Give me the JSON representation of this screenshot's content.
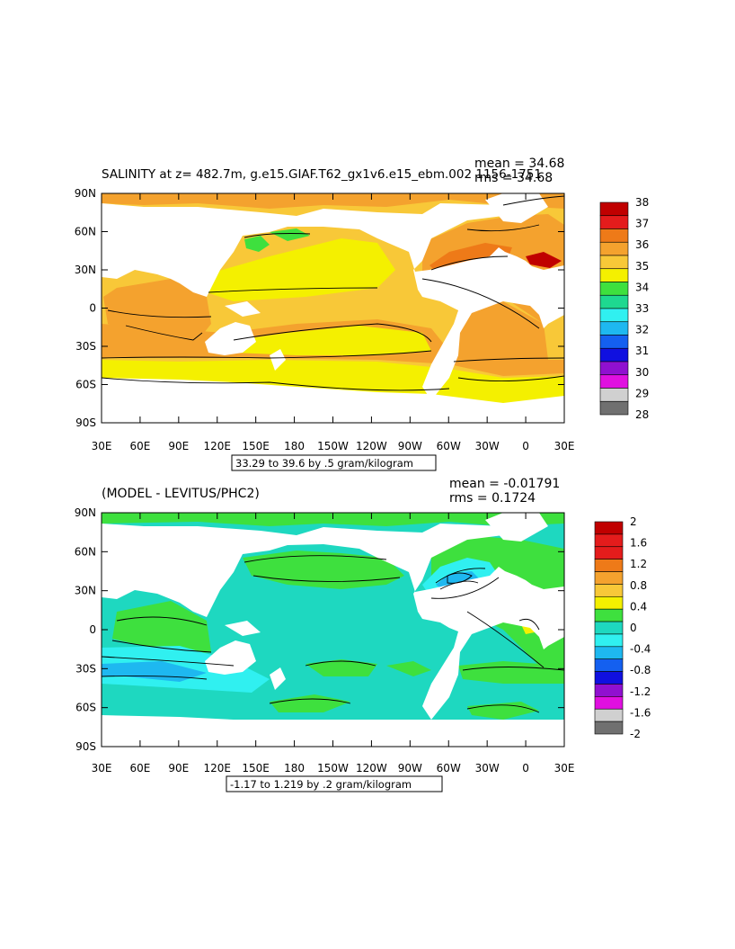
{
  "panels": [
    {
      "title": "SALINITY at z= 482.7m, g.e15.GIAF.T62_gx1v6.e15_ebm.002 1156-1751",
      "stats": [
        "mean = 34.68",
        "rms = 34.68"
      ],
      "range_label": "33.29 to 39.6 by .5 gram/kilogram",
      "colorbar": {
        "labels": [
          "38",
          "37",
          "36",
          "35",
          "34",
          "33",
          "32",
          "31",
          "30",
          "29",
          "28"
        ],
        "colors": [
          "#c00000",
          "#e41c1c",
          "#ee7a18",
          "#f4a22e",
          "#f8c838",
          "#f4f000",
          "#3ee03e",
          "#1ed890",
          "#30f0f0",
          "#1eb8f0",
          "#1460f0",
          "#1010e0",
          "#9010d0",
          "#e010e0",
          "#d0d0d0",
          "#707070"
        ]
      },
      "x_ticks": [
        "30E",
        "60E",
        "90E",
        "120E",
        "150E",
        "180",
        "150W",
        "120W",
        "90W",
        "60W",
        "30W",
        "0",
        "30E"
      ],
      "y_ticks": [
        "90N",
        "60N",
        "30N",
        "0",
        "30S",
        "60S",
        "90S"
      ],
      "ocean_color": "#f8c838",
      "band_colors": {
        "high": "#f4a22e",
        "mid": "#f8c838",
        "low": "#f4f000",
        "max": "#ee7a18",
        "hot": "#c00000",
        "green": "#3ee03e"
      }
    },
    {
      "title": "(MODEL - LEVITUS/PHC2)",
      "stats": [
        "mean = -0.01791",
        "rms = 0.1724"
      ],
      "range_label": "-1.17 to 1.219 by .2 gram/kilogram",
      "colorbar": {
        "labels": [
          "2",
          "1.6",
          "1.2",
          "0.8",
          "0.4",
          "0",
          "-0.4",
          "-0.8",
          "-1.2",
          "-1.6",
          "-2"
        ],
        "colors": [
          "#c00000",
          "#e41c1c",
          "#e41c1c",
          "#ee7a18",
          "#f4a22e",
          "#f8c838",
          "#f4f000",
          "#3ee03e",
          "#1ed8c0",
          "#30f0f0",
          "#1eb8f0",
          "#1460f0",
          "#1010e0",
          "#9010d0",
          "#e010e0",
          "#d0d0d0",
          "#707070"
        ]
      },
      "x_ticks": [
        "30E",
        "60E",
        "90E",
        "120E",
        "150E",
        "180",
        "150W",
        "120W",
        "90W",
        "60W",
        "30W",
        "0",
        "30E"
      ],
      "y_ticks": [
        "90N",
        "60N",
        "30N",
        "0",
        "30S",
        "60S",
        "90S"
      ],
      "ocean_color": "#1ed8c0",
      "band_colors": {
        "green": "#3ee03e",
        "cyan": "#30f0f0",
        "blue": "#1eb8f0",
        "yellow": "#f4f000"
      }
    }
  ],
  "chart_data": [
    {
      "type": "heatmap",
      "title": "SALINITY at z= 482.7m, g.e15.GIAF.T62_gx1v6.e15_ebm.002 1156-1751",
      "xlabel": "",
      "ylabel": "",
      "x_ticks": [
        "30E",
        "60E",
        "90E",
        "120E",
        "150E",
        "180",
        "150W",
        "120W",
        "90W",
        "60W",
        "30W",
        "0",
        "30E"
      ],
      "y_ticks": [
        "90N",
        "60N",
        "30N",
        "0",
        "30S",
        "60S",
        "90S"
      ],
      "xlim": [
        30,
        390
      ],
      "ylim": [
        -90,
        90
      ],
      "color_levels": [
        28,
        29,
        30,
        31,
        32,
        33,
        34,
        35,
        36,
        37,
        38
      ],
      "mean": 34.68,
      "rms": 34.68,
      "contour_range": "33.29 to 39.6 by .5 gram/kilogram"
    },
    {
      "type": "heatmap",
      "title": "(MODEL - LEVITUS/PHC2)",
      "xlabel": "",
      "ylabel": "",
      "x_ticks": [
        "30E",
        "60E",
        "90E",
        "120E",
        "150E",
        "180",
        "150W",
        "120W",
        "90W",
        "60W",
        "30W",
        "0",
        "30E"
      ],
      "y_ticks": [
        "90N",
        "60N",
        "30N",
        "0",
        "30S",
        "60S",
        "90S"
      ],
      "xlim": [
        30,
        390
      ],
      "ylim": [
        -90,
        90
      ],
      "color_levels": [
        -2,
        -1.6,
        -1.2,
        -0.8,
        -0.4,
        0,
        0.4,
        0.8,
        1.2,
        1.6,
        2
      ],
      "mean": -0.01791,
      "rms": 0.1724,
      "contour_range": "-1.17 to 1.219 by .2 gram/kilogram"
    }
  ]
}
